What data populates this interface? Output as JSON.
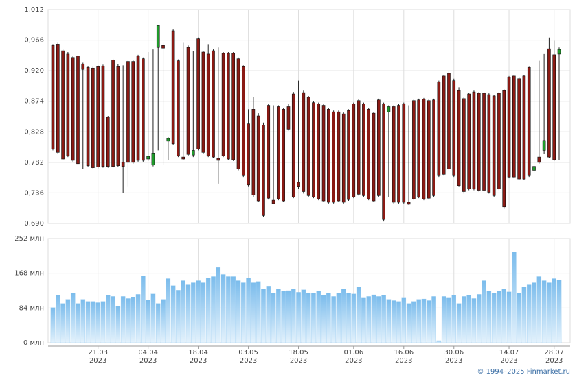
{
  "chart_data": [
    {
      "type": "candlestick",
      "categories": [
        null,
        null,
        null,
        null,
        null,
        null,
        null,
        null,
        null,
        {
          "date": "21.03",
          "year": "2023"
        },
        null,
        null,
        null,
        null,
        null,
        null,
        null,
        null,
        null,
        {
          "date": "04.04",
          "year": "2023"
        },
        null,
        null,
        null,
        null,
        null,
        null,
        null,
        null,
        null,
        {
          "date": "18.04",
          "year": "2023"
        },
        null,
        null,
        null,
        null,
        null,
        null,
        null,
        null,
        null,
        {
          "date": "03.05",
          "year": "2023"
        },
        null,
        null,
        null,
        null,
        null,
        null,
        null,
        null,
        null,
        {
          "date": "18.05",
          "year": "2023"
        },
        null,
        null,
        null,
        null,
        null,
        null,
        null,
        null,
        null,
        null,
        {
          "date": "01.06",
          "year": "2023"
        },
        null,
        null,
        null,
        null,
        null,
        null,
        null,
        null,
        null,
        {
          "date": "16.06",
          "year": "2023"
        },
        null,
        null,
        null,
        null,
        null,
        null,
        null,
        null,
        null,
        {
          "date": "30.06",
          "year": "2023"
        },
        null,
        null,
        null,
        null,
        null,
        null,
        null,
        null,
        null,
        null,
        {
          "date": "14.07",
          "year": "2023"
        },
        null,
        null,
        null,
        null,
        null,
        null,
        null,
        null,
        {
          "date": "28.07",
          "year": "2023"
        },
        null
      ],
      "open": [
        0.958,
        0.96,
        0.95,
        0.945,
        0.94,
        0.942,
        0.93,
        0.925,
        0.924,
        0.926,
        0.927,
        0.85,
        0.936,
        0.926,
        0.782,
        0.934,
        0.934,
        0.942,
        0.938,
        0.787,
        0.778,
        0.955,
        0.958,
        0.814,
        0.98,
        0.935,
        0.79,
        0.955,
        0.793,
        0.968,
        0.948,
        0.945,
        0.95,
        0.788,
        0.946,
        0.946,
        0.946,
        0.938,
        0.926,
        0.84,
        0.862,
        0.852,
        0.838,
        0.868,
        0.725,
        0.866,
        0.862,
        0.866,
        0.885,
        0.752,
        0.887,
        0.88,
        0.872,
        0.87,
        0.868,
        0.862,
        0.858,
        0.858,
        0.855,
        0.86,
        0.87,
        0.875,
        0.87,
        0.862,
        0.856,
        0.876,
        0.87,
        0.858,
        0.866,
        0.868,
        0.87,
        0.722,
        0.875,
        0.876,
        0.877,
        0.875,
        0.876,
        0.903,
        0.912,
        0.916,
        0.905,
        0.89,
        0.878,
        0.885,
        0.888,
        0.886,
        0.886,
        0.884,
        0.882,
        0.886,
        0.89,
        0.91,
        0.912,
        0.908,
        0.912,
        0.925,
        0.77,
        0.79,
        0.8,
        0.953,
        0.944,
        0.945
      ],
      "high": [
        0.96,
        0.962,
        0.952,
        0.948,
        0.942,
        0.944,
        0.932,
        0.927,
        0.926,
        0.928,
        0.929,
        0.852,
        0.938,
        0.93,
        0.928,
        0.936,
        0.936,
        0.944,
        0.94,
        0.948,
        0.952,
        0.988,
        0.962,
        0.82,
        0.982,
        0.937,
        0.962,
        0.958,
        0.95,
        0.97,
        0.95,
        0.96,
        0.952,
        0.955,
        0.948,
        0.948,
        0.948,
        0.94,
        0.928,
        0.862,
        0.88,
        0.856,
        0.842,
        0.87,
        0.868,
        0.868,
        0.864,
        0.87,
        0.888,
        0.905,
        0.89,
        0.882,
        0.874,
        0.872,
        0.87,
        0.864,
        0.86,
        0.86,
        0.857,
        0.862,
        0.872,
        0.877,
        0.872,
        0.864,
        0.858,
        0.878,
        0.872,
        0.868,
        0.868,
        0.87,
        0.872,
        0.868,
        0.877,
        0.878,
        0.879,
        0.877,
        0.878,
        0.905,
        0.914,
        0.92,
        0.908,
        0.895,
        0.88,
        0.887,
        0.89,
        0.888,
        0.888,
        0.886,
        0.884,
        0.888,
        0.892,
        0.912,
        0.914,
        0.91,
        0.914,
        0.926,
        0.92,
        0.935,
        0.945,
        0.97,
        0.965,
        0.955
      ],
      "low": [
        0.8,
        0.795,
        0.785,
        0.79,
        0.783,
        0.778,
        0.772,
        0.775,
        0.772,
        0.773,
        0.774,
        0.774,
        0.774,
        0.775,
        0.736,
        0.745,
        0.78,
        0.783,
        0.783,
        0.784,
        0.776,
        0.8,
        0.778,
        0.785,
        0.808,
        0.79,
        0.786,
        0.792,
        0.79,
        0.8,
        0.795,
        0.79,
        0.788,
        0.75,
        0.79,
        0.785,
        0.784,
        0.77,
        0.76,
        0.745,
        0.73,
        0.722,
        0.7,
        0.726,
        0.72,
        0.725,
        0.722,
        0.83,
        0.728,
        0.742,
        0.735,
        0.73,
        0.728,
        0.725,
        0.722,
        0.72,
        0.72,
        0.722,
        0.72,
        0.724,
        0.728,
        0.732,
        0.73,
        0.725,
        0.722,
        0.73,
        0.693,
        0.73,
        0.72,
        0.72,
        0.72,
        0.718,
        0.725,
        0.728,
        0.725,
        0.726,
        0.73,
        0.76,
        0.762,
        0.77,
        0.76,
        0.745,
        0.735,
        0.74,
        0.74,
        0.738,
        0.738,
        0.735,
        0.73,
        0.74,
        0.712,
        0.758,
        0.758,
        0.755,
        0.755,
        0.76,
        0.766,
        0.78,
        0.795,
        0.788,
        0.784,
        0.786
      ],
      "close": [
        0.802,
        0.797,
        0.787,
        0.792,
        0.785,
        0.78,
        0.922,
        0.777,
        0.774,
        0.775,
        0.776,
        0.776,
        0.776,
        0.777,
        0.776,
        0.782,
        0.782,
        0.785,
        0.785,
        0.791,
        0.796,
        0.988,
        0.954,
        0.818,
        0.81,
        0.792,
        0.787,
        0.794,
        0.8,
        0.802,
        0.797,
        0.792,
        0.79,
        0.785,
        0.792,
        0.787,
        0.786,
        0.772,
        0.762,
        0.748,
        0.733,
        0.724,
        0.702,
        0.728,
        0.72,
        0.727,
        0.724,
        0.832,
        0.73,
        0.745,
        0.738,
        0.732,
        0.73,
        0.727,
        0.724,
        0.722,
        0.722,
        0.724,
        0.722,
        0.726,
        0.73,
        0.734,
        0.732,
        0.727,
        0.724,
        0.732,
        0.696,
        0.866,
        0.722,
        0.722,
        0.722,
        0.719,
        0.727,
        0.73,
        0.727,
        0.728,
        0.732,
        0.762,
        0.764,
        0.772,
        0.762,
        0.747,
        0.738,
        0.742,
        0.742,
        0.74,
        0.74,
        0.737,
        0.732,
        0.742,
        0.715,
        0.76,
        0.76,
        0.757,
        0.757,
        0.762,
        0.776,
        0.782,
        0.815,
        0.79,
        0.786,
        0.952
      ],
      "up_color": "#1f9a2a",
      "down_color": "#8b1a14",
      "ylim": [
        0.69,
        1.012
      ],
      "yticks": [
        {
          "value": 0.69,
          "label": "0,690"
        },
        {
          "value": 0.736,
          "label": "0,736"
        },
        {
          "value": 0.782,
          "label": "0,782"
        },
        {
          "value": 0.828,
          "label": "0,828"
        },
        {
          "value": 0.874,
          "label": "0,874"
        },
        {
          "value": 0.92,
          "label": "0,920"
        },
        {
          "value": 0.966,
          "label": "0,966"
        },
        {
          "value": 1.012,
          "label": "1,012"
        }
      ],
      "grid": true
    },
    {
      "type": "bar",
      "values": [
        85,
        115,
        95,
        105,
        120,
        95,
        105,
        100,
        100,
        97,
        100,
        115,
        112,
        88,
        112,
        107,
        110,
        117,
        162,
        103,
        118,
        95,
        105,
        155,
        138,
        127,
        150,
        140,
        145,
        150,
        145,
        157,
        160,
        182,
        165,
        160,
        160,
        150,
        145,
        157,
        145,
        148,
        130,
        137,
        120,
        130,
        125,
        126,
        130,
        122,
        128,
        120,
        120,
        125,
        115,
        120,
        112,
        120,
        130,
        120,
        118,
        135,
        108,
        112,
        116,
        112,
        115,
        105,
        102,
        100,
        108,
        95,
        100,
        105,
        106,
        102,
        112,
        5,
        112,
        108,
        115,
        95,
        112,
        115,
        107,
        117,
        150,
        125,
        120,
        125,
        130,
        123,
        220,
        120,
        135,
        140,
        145,
        160,
        150,
        145,
        155,
        152
      ],
      "color": "#8cc6f0",
      "ylim": [
        0,
        252
      ],
      "yticks": [
        {
          "value": 0,
          "label": "0 млн"
        },
        {
          "value": 84,
          "label": "84 млн"
        },
        {
          "value": 168,
          "label": "168 млн"
        },
        {
          "value": 252,
          "label": "252 млн"
        }
      ],
      "grid": true
    }
  ],
  "footer": "© 1994–2025 Finmarket.ru"
}
